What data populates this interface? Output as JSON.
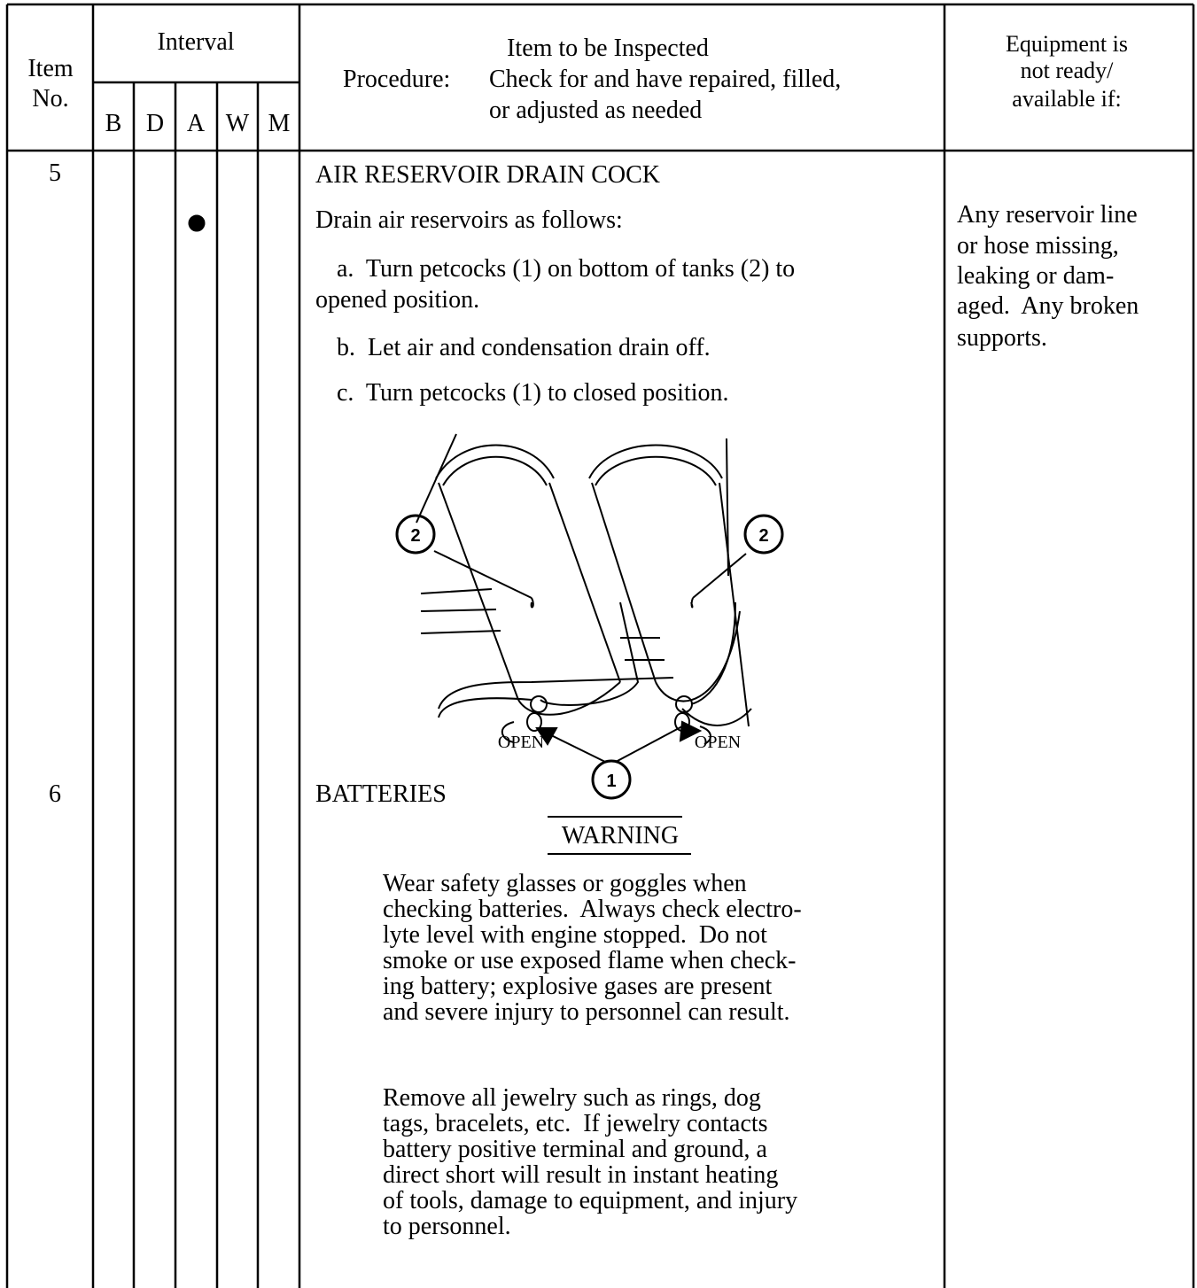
{
  "header": {
    "item_no": [
      "Item",
      "No."
    ],
    "interval": "Interval",
    "intervals": [
      "B",
      "D",
      "A",
      "W",
      "M"
    ],
    "inspected": "Item to be Inspected",
    "procedure_label": "Procedure:",
    "procedure": [
      "Check for and have repaired, filled,",
      "or adjusted as needed"
    ],
    "not_ready": [
      "Equipment is",
      "not ready/",
      "available if:"
    ]
  },
  "rows": [
    {
      "item": "5",
      "title": "AIR RESERVOIR DRAIN COCK",
      "intro": "Drain air reservoirs as follows:",
      "steps": [
        "a.  Turn petcocks (1) on bottom of tanks (2) to",
        "opened position.",
        "b.  Let air and condensation drain off.",
        "c.  Turn petcocks (1) to closed position."
      ],
      "figure": {
        "open_labels": [
          "OPEN",
          "OPEN"
        ],
        "callouts": [
          "2",
          "2",
          "1"
        ]
      },
      "not_ready": [
        "Any reservoir line",
        "or hose missing,",
        "leaking or dam-",
        "aged.  Any broken",
        "supports."
      ]
    },
    {
      "item": "6",
      "title": "BATTERIES",
      "warning": "WARNING",
      "paragraphs": [
        [
          "Wear safety glasses or goggles when",
          "checking batteries.  Always check electro-",
          "lyte level with engine stopped.  Do not",
          "smoke or use exposed flame when check-",
          "ing battery; explosive gases are present",
          "and severe injury to personnel can result."
        ],
        [
          "Remove all jewelry such as rings, dog",
          "tags, bracelets, etc.  If jewelry contacts",
          "battery positive terminal and ground, a",
          "direct short will result in instant heating",
          "of tools, damage to equipment, and injury",
          "to personnel."
        ]
      ]
    }
  ]
}
